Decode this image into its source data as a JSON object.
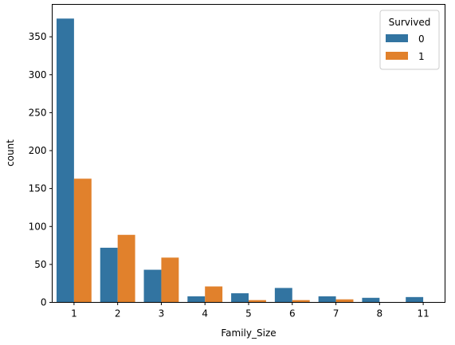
{
  "colors": {
    "series_0": "#3274a1",
    "series_1": "#e1812c"
  },
  "chart_data": {
    "type": "bar",
    "categories": [
      "1",
      "2",
      "3",
      "4",
      "5",
      "6",
      "7",
      "8",
      "11"
    ],
    "series": [
      {
        "name": "0",
        "values": [
          374,
          72,
          43,
          8,
          12,
          19,
          8,
          6,
          7
        ]
      },
      {
        "name": "1",
        "values": [
          163,
          89,
          59,
          21,
          3,
          3,
          4,
          0,
          0
        ]
      }
    ],
    "xlabel": "Family_Size",
    "ylabel": "count",
    "ylim": [
      0,
      392.7
    ],
    "yticks": [
      0,
      50,
      100,
      150,
      200,
      250,
      300,
      350
    ],
    "legend": {
      "title": "Survived",
      "position": "top-right"
    },
    "grid": false
  }
}
